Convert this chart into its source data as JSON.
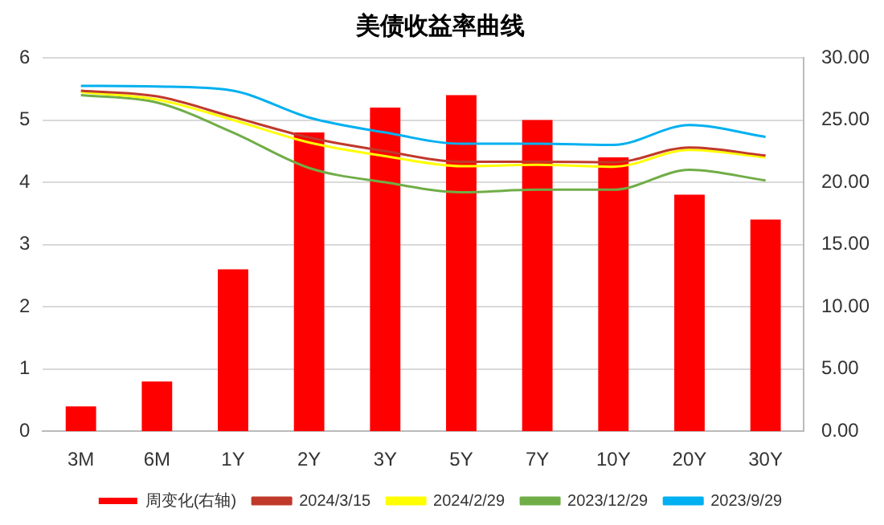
{
  "chart_data": {
    "type": "bar",
    "title": "美债收益率曲线",
    "categories": [
      "3M",
      "6M",
      "1Y",
      "2Y",
      "3Y",
      "5Y",
      "7Y",
      "10Y",
      "20Y",
      "30Y"
    ],
    "series": [
      {
        "name": "周变化(右轴)",
        "axis": "y2",
        "color": "#ff0000",
        "values": [
          2,
          4,
          13,
          24,
          26,
          27,
          25,
          22,
          19,
          17
        ]
      },
      {
        "name": "2024/3/15",
        "type": "line",
        "color": "#c0392b",
        "values": [
          5.47,
          5.38,
          5.05,
          4.72,
          4.5,
          4.33,
          4.33,
          4.32,
          4.56,
          4.43
        ]
      },
      {
        "name": "2024/2/29",
        "type": "line",
        "color": "#ffff00",
        "values": [
          5.45,
          5.33,
          5.0,
          4.64,
          4.42,
          4.26,
          4.28,
          4.25,
          4.52,
          4.4
        ]
      },
      {
        "name": "2023/12/29",
        "type": "line",
        "color": "#70ad47",
        "values": [
          5.4,
          5.28,
          4.8,
          4.23,
          4.0,
          3.84,
          3.88,
          3.88,
          4.2,
          4.03
        ]
      },
      {
        "name": "2023/9/29",
        "type": "line",
        "color": "#00b0f0",
        "values": [
          5.55,
          5.54,
          5.47,
          5.04,
          4.8,
          4.62,
          4.62,
          4.6,
          4.92,
          4.73
        ]
      }
    ],
    "ylim": [
      0,
      6
    ],
    "yticks": [
      0,
      1,
      2,
      3,
      4,
      5,
      6
    ],
    "y2lim": [
      0,
      30
    ],
    "y2ticks": [
      {
        "value": 0,
        "label": "0.00"
      },
      {
        "value": 5,
        "label": "5.00"
      },
      {
        "value": 10,
        "label": "10.00"
      },
      {
        "value": 15,
        "label": "15.00"
      },
      {
        "value": 20,
        "label": "20.00"
      },
      {
        "value": 25,
        "label": "25.00"
      },
      {
        "value": 30,
        "label": "30.00"
      }
    ],
    "grid": "y",
    "legend": "bottom",
    "marker": "none",
    "line_style": "solid"
  }
}
